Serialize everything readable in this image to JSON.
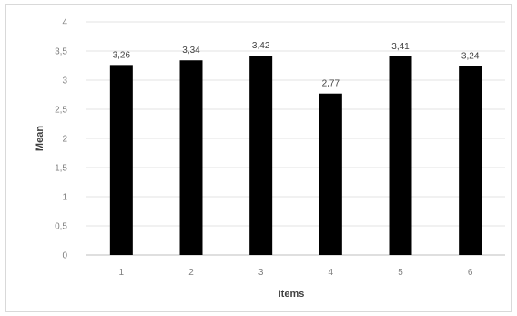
{
  "chart_data": {
    "type": "bar",
    "categories": [
      "1",
      "2",
      "3",
      "4",
      "5",
      "6"
    ],
    "values": [
      3.26,
      3.34,
      3.42,
      2.77,
      3.41,
      3.24
    ],
    "data_labels": [
      "3,26",
      "3,34",
      "3,42",
      "2,77",
      "3,41",
      "3,24"
    ],
    "xlabel": "Items",
    "ylabel": "Mean",
    "ylim": [
      0,
      4
    ],
    "yticks": [
      0,
      0.5,
      1,
      1.5,
      2,
      2.5,
      3,
      3.5,
      4
    ],
    "ytick_labels": [
      "0",
      "0,5",
      "1",
      "1,5",
      "2",
      "2,5",
      "3",
      "3,5",
      "4"
    ],
    "grid": true,
    "bar_color": "#000000",
    "grid_color": "#e3e3e3"
  }
}
